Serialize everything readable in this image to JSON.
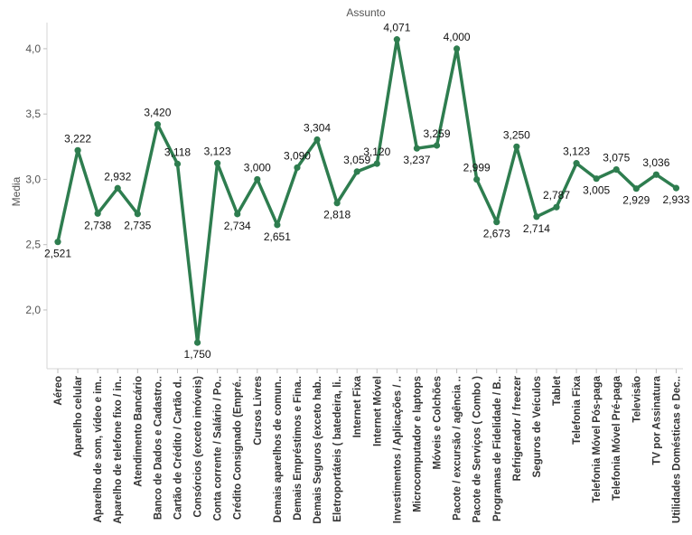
{
  "chart_data": {
    "type": "line",
    "title": "Assunto",
    "ylabel": "Media",
    "xlabel": "",
    "ylim": [
      1.55,
      4.2
    ],
    "yticks": [
      "2,0",
      "2,5",
      "3,0",
      "3,5",
      "4,0"
    ],
    "ytick_values": [
      2.0,
      2.5,
      3.0,
      3.5,
      4.0
    ],
    "grid": false,
    "line_color": "#2e7d4f",
    "categories": [
      "Aéreo",
      "Aparelho celular",
      "Aparelho de som, vídeo e im..",
      "Aparelho de telefone fixo / in..",
      "Atendimento Bancário",
      "Banco de Dados e Cadastro..",
      "Cartão de Crédito / Cartão d..",
      "Consórcios (exceto imóveis)",
      "Conta corrente / Salário / Po..",
      "Crédito Consignado (Empré..",
      "Cursos Livres",
      "Demais aparelhos de comun..",
      "Demais Empréstimos e Fina..",
      "Demais Seguros (exceto hab..",
      "Eletroportáteis ( batedeira, li..",
      "Internet Fixa",
      "Internet Móvel",
      "Investimentos / Aplicações / ..",
      "Microcomputador e laptops",
      "Móveis e Colchões",
      "Pacote / excursão / agência ..",
      "Pacote de Serviços ( Combo )",
      "Programas de Fidelidade / B..",
      "Refrigerador / freezer",
      "Seguros de Veículos",
      "Tablet",
      "Telefonia Fixa",
      "Telefonia Móvel Pós-paga",
      "Telefonia Móvel Pré-paga",
      "Televisão",
      "TV por Assinatura",
      "Utilidades Domésticas e Dec.."
    ],
    "series": [
      {
        "values": [
          2.521,
          3.222,
          2.738,
          2.932,
          2.735,
          3.42,
          3.118,
          1.75,
          3.123,
          2.734,
          3.0,
          2.651,
          3.09,
          3.304,
          2.818,
          3.059,
          3.12,
          4.071,
          3.237,
          3.259,
          4.0,
          2.999,
          2.673,
          3.25,
          2.714,
          2.787,
          3.123,
          3.005,
          3.075,
          2.929,
          3.036,
          2.933
        ],
        "labels": [
          "2,521",
          "3,222",
          "2,738",
          "2,932",
          "2,735",
          "3,420",
          "3,118",
          "1,750",
          "3,123",
          "2,734",
          "3,000",
          "2,651",
          "3,090",
          "3,304",
          "2,818",
          "3,059",
          "3,120",
          "4,071",
          "3,237",
          "3,259",
          "4,000",
          "2,999",
          "2,673",
          "3,250",
          "2,714",
          "2,787",
          "3,123",
          "3,005",
          "3,075",
          "2,929",
          "3,036",
          "2,933"
        ]
      }
    ]
  }
}
